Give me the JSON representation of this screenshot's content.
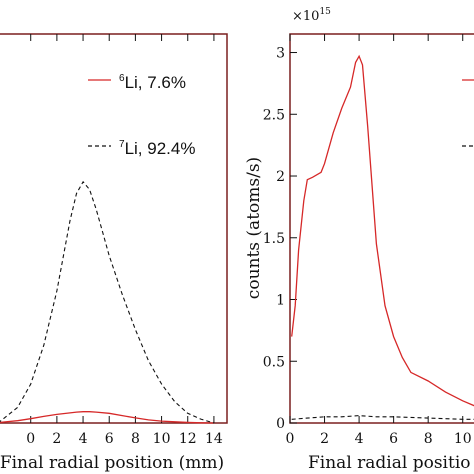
{
  "chart_data": [
    {
      "type": "line",
      "xlabel": "Final radial position (mm)",
      "ylabel": "",
      "xlim": [
        -2.5,
        15
      ],
      "ylim": [
        0,
        1
      ],
      "x_ticks": [
        0,
        2,
        4,
        6,
        8,
        10,
        12,
        14
      ],
      "legend_position": "top-right",
      "series": [
        {
          "name": "6Li, 7.6%",
          "legend_sup": "6",
          "legend_label": "Li, 7.6%",
          "color": "#d62828",
          "dash": "solid",
          "x": [
            -2.5,
            -1,
            0,
            1,
            2,
            3,
            3.5,
            4,
            4.5,
            5,
            6,
            7,
            8,
            9,
            10,
            11,
            12,
            13,
            14
          ],
          "y": [
            0.001,
            0.006,
            0.011,
            0.017,
            0.022,
            0.026,
            0.028,
            0.029,
            0.029,
            0.028,
            0.025,
            0.019,
            0.013,
            0.008,
            0.005,
            0.003,
            0.0015,
            0.0005,
            0
          ]
        },
        {
          "name": "7Li, 92.4%",
          "legend_sup": "7",
          "legend_label": "Li, 92.4%",
          "color": "#111111",
          "dash": "dashed",
          "x": [
            -2.5,
            -1,
            0,
            1,
            2,
            3,
            3.5,
            4,
            4.5,
            5,
            5.5,
            6,
            6.5,
            7,
            8,
            9,
            10,
            11,
            12,
            13,
            14
          ],
          "y": [
            0.0,
            0.04,
            0.1,
            0.2,
            0.34,
            0.52,
            0.59,
            0.62,
            0.6,
            0.55,
            0.49,
            0.43,
            0.38,
            0.33,
            0.24,
            0.16,
            0.1,
            0.055,
            0.025,
            0.01,
            0.0
          ]
        }
      ]
    },
    {
      "type": "line",
      "xlabel": "Final radial positio",
      "ylabel": "counts (atoms/s)",
      "multiplier_base": "×10",
      "multiplier_exp": "15",
      "xlim": [
        0,
        11
      ],
      "ylim": [
        0,
        3.15
      ],
      "x_ticks": [
        0,
        2,
        4,
        6,
        8,
        10
      ],
      "y_ticks": [
        0,
        0.5,
        1,
        1.5,
        2,
        2.5,
        3
      ],
      "legend_position": "top-right",
      "series": [
        {
          "color": "#d62828",
          "dash": "solid",
          "x": [
            0.1,
            0.3,
            0.5,
            0.8,
            1.0,
            1.3,
            1.8,
            2.0,
            2.5,
            3.0,
            3.5,
            3.8,
            4.0,
            4.2,
            4.5,
            5.0,
            5.5,
            6.0,
            6.5,
            7.0,
            8.0,
            9.0,
            10.0,
            11.0
          ],
          "y": [
            0.7,
            0.95,
            1.4,
            1.8,
            1.97,
            1.99,
            2.03,
            2.1,
            2.35,
            2.55,
            2.72,
            2.92,
            2.97,
            2.9,
            2.4,
            1.45,
            0.95,
            0.7,
            0.53,
            0.41,
            0.34,
            0.25,
            0.18,
            0.12
          ]
        },
        {
          "color": "#111111",
          "dash": "dashed",
          "x": [
            0.1,
            1,
            2,
            3,
            4,
            5,
            6,
            7,
            8,
            9,
            10,
            11
          ],
          "y": [
            0.03,
            0.04,
            0.05,
            0.05,
            0.06,
            0.05,
            0.05,
            0.045,
            0.04,
            0.035,
            0.03,
            0.03
          ]
        }
      ]
    }
  ]
}
